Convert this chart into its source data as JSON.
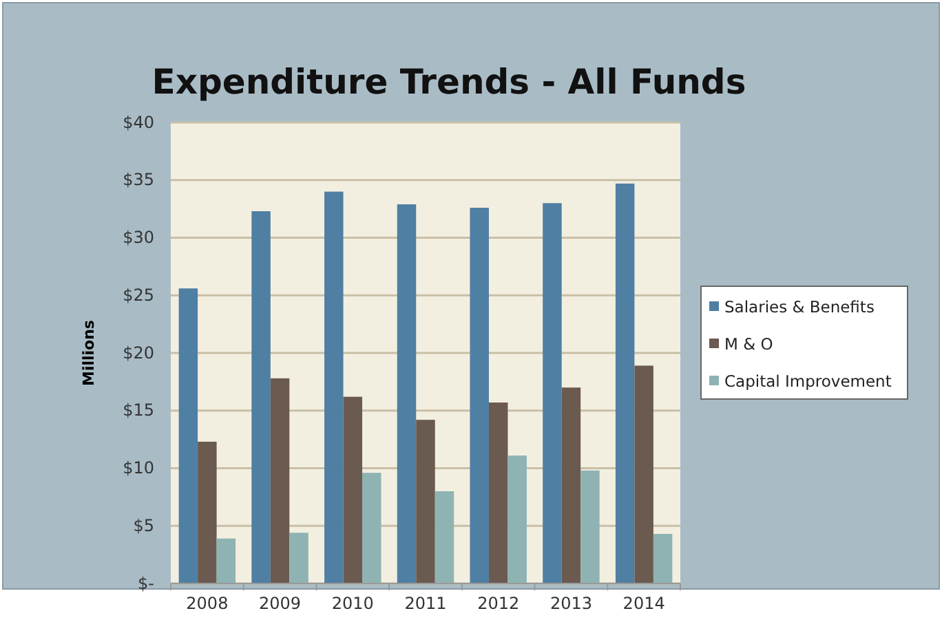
{
  "chart_data": {
    "type": "bar",
    "title": "Expenditure Trends - All Funds",
    "ylabel": "Millions",
    "categories": [
      "2008",
      "2009",
      "2010",
      "2011",
      "2012",
      "2013",
      "2014"
    ],
    "series": [
      {
        "name": "Salaries & Benefits",
        "color": "#4f7fa3",
        "values": [
          25.6,
          32.3,
          34.0,
          32.9,
          32.6,
          33.0,
          34.7
        ]
      },
      {
        "name": "M & O",
        "color": "#6b5a50",
        "values": [
          12.3,
          17.8,
          16.2,
          14.2,
          15.7,
          17.0,
          18.9
        ]
      },
      {
        "name": "Capital Improvement",
        "color": "#8fb3b3",
        "values": [
          3.9,
          4.4,
          9.6,
          8.0,
          11.1,
          9.8,
          4.3
        ]
      }
    ],
    "ylim": [
      0,
      40
    ],
    "yticks": [
      {
        "value": 0,
        "label": "$-"
      },
      {
        "value": 5,
        "label": "$5"
      },
      {
        "value": 10,
        "label": "$10"
      },
      {
        "value": 15,
        "label": "$15"
      },
      {
        "value": 20,
        "label": "$20"
      },
      {
        "value": 25,
        "label": "$25"
      },
      {
        "value": 30,
        "label": "$30"
      },
      {
        "value": 35,
        "label": "$35"
      },
      {
        "value": 40,
        "label": "$40"
      }
    ],
    "grid": "y",
    "legend": "right"
  }
}
